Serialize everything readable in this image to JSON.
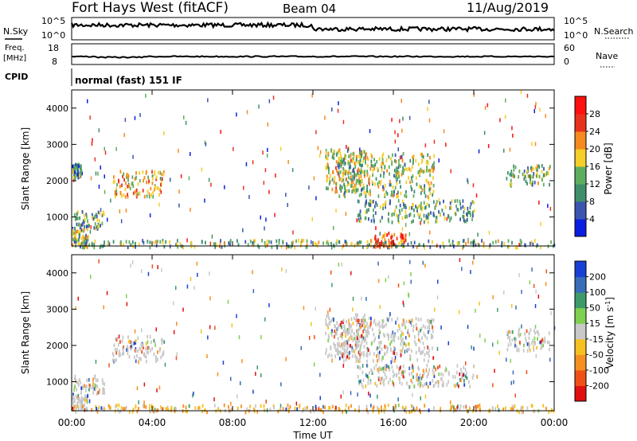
{
  "header": {
    "title": "Fort Hays West (fitACF)",
    "beam": "Beam 04",
    "date": "11/Aug/2019"
  },
  "panels": {
    "noise": {
      "left_label": "N.Sky",
      "right_label": "N.Search",
      "left_ticks": [
        "10^5",
        "10^0"
      ],
      "right_ticks": [
        "10^5",
        "10^0"
      ]
    },
    "freq": {
      "left_label_1": "Freq.",
      "left_label_2": "[MHz]",
      "left_ticks": [
        "18",
        "8"
      ],
      "right_label": "Nave",
      "right_ticks": [
        "60",
        "0"
      ]
    },
    "cpid": {
      "label": "CPID",
      "text": "normal (fast) 151 IF"
    }
  },
  "chart_data": [
    {
      "type": "heatmap",
      "name": "power",
      "ylabel": "Slant Range [km]",
      "xlabel": "",
      "ylim": [
        200,
        4500
      ],
      "xlim": [
        0,
        24
      ],
      "y_ticks": [
        "1000",
        "2000",
        "3000",
        "4000"
      ],
      "colorbar": {
        "label": "Power [dB]",
        "ticks": [
          "4",
          "8",
          "12",
          "16",
          "20",
          "24",
          "28"
        ],
        "colors": [
          "#0a1ee0",
          "#3a56b0",
          "#3f8f6c",
          "#5fae5f",
          "#f5ce28",
          "#f58a1e",
          "#e8321e",
          "#ff1010"
        ],
        "range": [
          0,
          32
        ]
      },
      "regions": [
        {
          "t": [
            0.0,
            0.8
          ],
          "r": [
            200,
            700
          ],
          "level": 0.45
        },
        {
          "t": [
            0.1,
            1.6
          ],
          "r": [
            700,
            1200
          ],
          "level": 0.35
        },
        {
          "t": [
            0.0,
            0.5
          ],
          "r": [
            2100,
            2500
          ],
          "level": 0.25
        },
        {
          "t": [
            2.0,
            4.6
          ],
          "r": [
            1600,
            2300
          ],
          "level": 0.6
        },
        {
          "t": [
            0.5,
            24.0
          ],
          "r": [
            200,
            400
          ],
          "level": 0.4
        },
        {
          "t": [
            12.6,
            14.6
          ],
          "r": [
            1700,
            2900
          ],
          "level": 0.55
        },
        {
          "t": [
            14.2,
            20.0
          ],
          "r": [
            900,
            1500
          ],
          "level": 0.35
        },
        {
          "t": [
            13.2,
            18.0
          ],
          "r": [
            1600,
            2800
          ],
          "level": 0.45
        },
        {
          "t": [
            21.6,
            23.8
          ],
          "r": [
            1900,
            2500
          ],
          "level": 0.45
        },
        {
          "t": [
            15.0,
            16.6
          ],
          "r": [
            200,
            600
          ],
          "level": 0.85
        }
      ]
    },
    {
      "type": "heatmap",
      "name": "velocity",
      "ylabel": "Slant Range [km]",
      "xlabel": "Time UT",
      "ylim": [
        200,
        4500
      ],
      "xlim": [
        0,
        24
      ],
      "y_ticks": [
        "1000",
        "2000",
        "3000",
        "4000"
      ],
      "colorbar": {
        "label": "Velocity [m s^-1]",
        "ticks": [
          "200",
          "100",
          "50",
          "15",
          "-15",
          "-50",
          "-100",
          "-200"
        ],
        "colors": [
          "#1a3fd6",
          "#3a6cb8",
          "#3f9a6a",
          "#7fd050",
          "#c8c8c8",
          "#f5c020",
          "#f59020",
          "#f05018",
          "#e01010"
        ],
        "range": [
          -250,
          250
        ]
      },
      "regions": [
        {
          "t": [
            0.0,
            0.8
          ],
          "r": [
            200,
            700
          ],
          "level": 0.5
        },
        {
          "t": [
            0.1,
            1.6
          ],
          "r": [
            700,
            1200
          ],
          "level": 0.5
        },
        {
          "t": [
            2.0,
            4.6
          ],
          "r": [
            1600,
            2300
          ],
          "level": 0.5
        },
        {
          "t": [
            0.5,
            24.0
          ],
          "r": [
            200,
            400
          ],
          "level": 0.35
        },
        {
          "t": [
            12.6,
            14.6
          ],
          "r": [
            1700,
            2900
          ],
          "level": 0.5
        },
        {
          "t": [
            14.2,
            20.0
          ],
          "r": [
            900,
            1500
          ],
          "level": 0.5
        },
        {
          "t": [
            13.2,
            18.0
          ],
          "r": [
            1600,
            2800
          ],
          "level": 0.5
        },
        {
          "t": [
            21.6,
            23.8
          ],
          "r": [
            1900,
            2500
          ],
          "level": 0.5
        }
      ]
    }
  ],
  "x_axis": {
    "ticks": [
      "00:00",
      "04:00",
      "08:00",
      "12:00",
      "16:00",
      "20:00",
      "00:00"
    ],
    "label": "Time UT"
  }
}
